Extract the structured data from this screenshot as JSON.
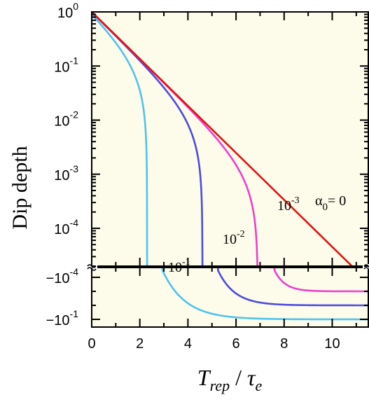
{
  "chart_data": {
    "type": "line",
    "title": "",
    "xlabel": {
      "main": "T",
      "main_sub": "rep",
      "sep": " / ",
      "denom": "τ",
      "denom_sub": "e"
    },
    "ylabel": "Dip depth",
    "xlim": [
      0,
      11.5
    ],
    "x_ticks": [
      0,
      2,
      4,
      6,
      8,
      10
    ],
    "x_tick_labels": [
      "0",
      "2",
      "4",
      "6",
      "8",
      "10"
    ],
    "ylim_top_log": [
      2e-05,
      1
    ],
    "y_scale_top": "log",
    "y_ticks_top": [
      {
        "base": "10",
        "exp": "0"
      },
      {
        "base": "10",
        "exp": "-1"
      },
      {
        "base": "10",
        "exp": "-2"
      },
      {
        "base": "10",
        "exp": "-3"
      },
      {
        "base": "10",
        "exp": "-4"
      }
    ],
    "y_ticks_bottom": [
      {
        "base": "−10",
        "exp": "-4"
      },
      {
        "base": "−10",
        "exp": "-1"
      }
    ],
    "axis_break": true,
    "background": "#fdfbe9",
    "grid": false,
    "series": [
      {
        "alpha0": 0.1,
        "name_base": "10",
        "name_exp": "-1",
        "color": "#4fc3f0",
        "cutoff_x": 2.94,
        "negative_level_exp": -1
      },
      {
        "alpha0": 0.01,
        "name_base": "10",
        "name_exp": "-2",
        "color": "#4b4be0",
        "cutoff_x": 5.25,
        "negative_level_exp": -2
      },
      {
        "alpha0": 0.001,
        "name_base": "10",
        "name_exp": "-3",
        "color": "#ee3fce",
        "cutoff_x": 7.6,
        "negative_level_exp": -3
      },
      {
        "alpha0": 0,
        "name_base": "α",
        "name_sub": "0",
        "name_suffix": "= 0",
        "color": "#e11212"
      }
    ]
  }
}
